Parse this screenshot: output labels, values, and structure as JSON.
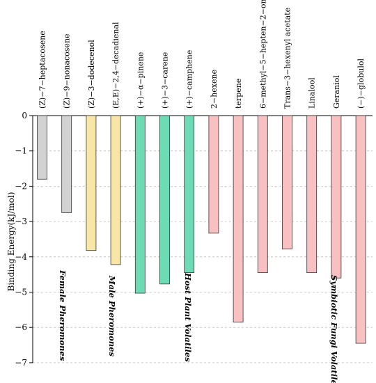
{
  "chart_data": {
    "type": "bar",
    "ylabel": "Binding Energy(kJ/mol)",
    "ylim": [
      -7,
      0
    ],
    "yticks": [
      0,
      -1,
      -2,
      -3,
      -4,
      -5,
      -6,
      -7
    ],
    "grid": "horizontal dashed",
    "categories": [
      "(Z)−7−heptacosene",
      "(Z)−9−nonacosene",
      "(Z)−3−dodecenol",
      "(E,E)−2,4−decadienal",
      "(+)−α−pinene",
      "(+)−3−carene",
      "(+)−camphene",
      "2−hexene",
      "terpene",
      "6−methyl−5−hepten−2−one",
      "Trans−3−hexenyl acetate",
      "Linalool",
      "Geraniol",
      "(−)−globulol"
    ],
    "values": [
      -1.8,
      -2.75,
      -3.82,
      -4.22,
      -5.03,
      -4.77,
      -4.45,
      -3.33,
      -5.85,
      -4.45,
      -3.78,
      -4.45,
      -4.6,
      -6.45
    ],
    "groups": [
      {
        "name": "Female Pheromones",
        "start": 0,
        "end": 1,
        "color": "#d2d2d2"
      },
      {
        "name": "Male Pheromones",
        "start": 2,
        "end": 3,
        "color": "#f8e6a6"
      },
      {
        "name": "Host Plant Volatiles",
        "start": 4,
        "end": 6,
        "color": "#6ddcb4"
      },
      {
        "name": "Symbiotic Fungi Volatiles",
        "start": 7,
        "end": 13,
        "color": "#f8c0c0"
      }
    ]
  }
}
